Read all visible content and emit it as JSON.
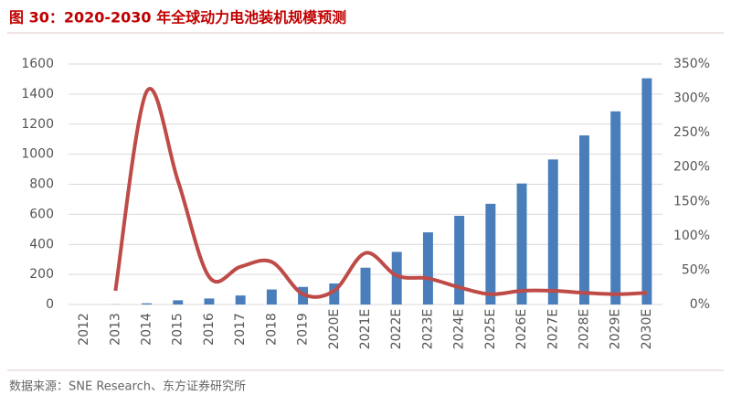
{
  "chart_data": {
    "type": "bar",
    "title": "图 30：2020-2030 年全球动力电池装机规模预测",
    "source": "数据来源：SNE Research、东方证券研究所",
    "categories": [
      "2012",
      "2013",
      "2014",
      "2015",
      "2016",
      "2017",
      "2018",
      "2019",
      "2020E",
      "2021E",
      "2022E",
      "2023E",
      "2024E",
      "2025E",
      "2026E",
      "2027E",
      "2028E",
      "2029E",
      "2030E"
    ],
    "series": [
      {
        "type": "bar",
        "color": "#4a7ebb",
        "values": [
          0,
          1,
          8,
          28,
          40,
          60,
          100,
          117,
          140,
          245,
          350,
          480,
          590,
          670,
          805,
          965,
          1125,
          1285,
          1505
        ]
      },
      {
        "type": "line",
        "axis": "y2",
        "color": "#be4b48",
        "values": [
          null,
          20,
          310,
          180,
          40,
          55,
          62,
          15,
          20,
          75,
          42,
          38,
          25,
          15,
          20,
          20,
          17,
          15,
          17
        ]
      }
    ],
    "ylim": [
      0,
      1600
    ],
    "yticks": [
      0,
      200,
      400,
      600,
      800,
      1000,
      1200,
      1400,
      1600
    ],
    "y2lim": [
      0,
      350
    ],
    "y2ticks": [
      {
        "value": 0,
        "label": "0%"
      },
      {
        "value": 50,
        "label": "50%"
      },
      {
        "value": 100,
        "label": "100%"
      },
      {
        "value": 150,
        "label": "150%"
      },
      {
        "value": 200,
        "label": "200%"
      },
      {
        "value": 250,
        "label": "250%"
      },
      {
        "value": 300,
        "label": "300%"
      },
      {
        "value": 350,
        "label": "350%"
      }
    ],
    "grid": true
  }
}
